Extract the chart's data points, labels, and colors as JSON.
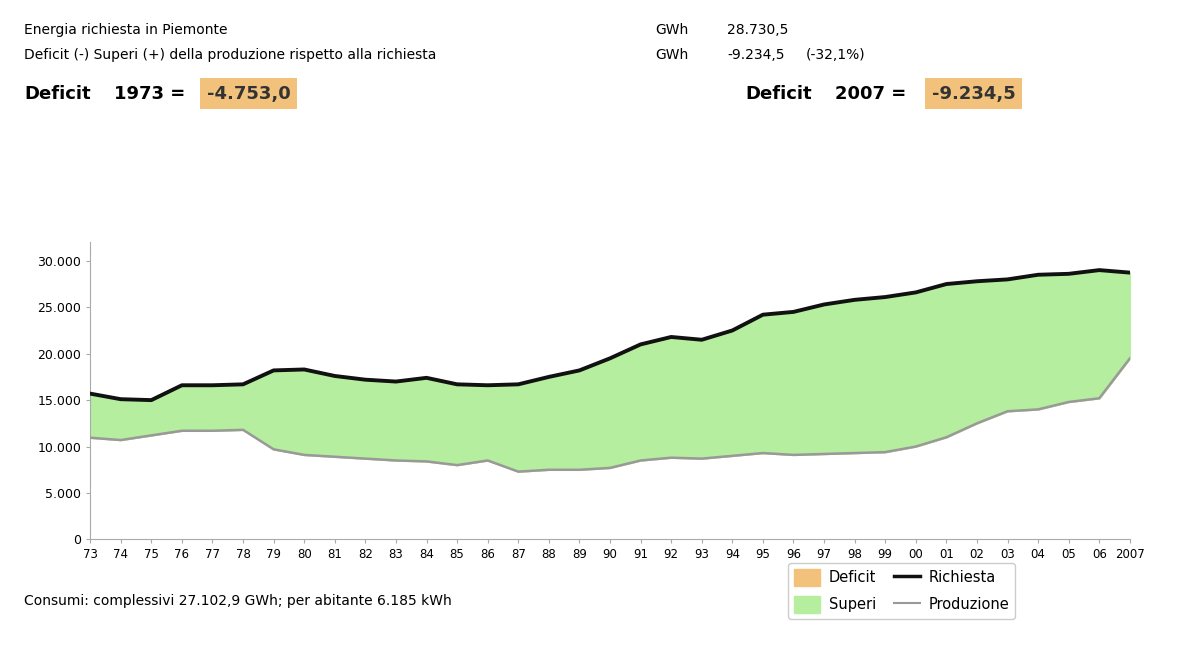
{
  "years": [
    1973,
    1974,
    1975,
    1976,
    1977,
    1978,
    1979,
    1980,
    1981,
    1982,
    1983,
    1984,
    1985,
    1986,
    1987,
    1988,
    1989,
    1990,
    1991,
    1992,
    1993,
    1994,
    1995,
    1996,
    1997,
    1998,
    1999,
    2000,
    2001,
    2002,
    2003,
    2004,
    2005,
    2006,
    2007
  ],
  "richiesta": [
    15700,
    15100,
    15000,
    16600,
    16600,
    16700,
    18200,
    18300,
    17600,
    17200,
    17000,
    17400,
    16700,
    16600,
    16700,
    17500,
    18200,
    19500,
    21000,
    21800,
    21500,
    22500,
    24200,
    24500,
    25300,
    25800,
    26100,
    26600,
    27500,
    27800,
    28000,
    28500,
    28600,
    29000,
    28730
  ],
  "produzione": [
    10950,
    10700,
    11200,
    11700,
    11700,
    11800,
    9700,
    9100,
    8900,
    8700,
    8500,
    8400,
    8000,
    8500,
    7300,
    7500,
    7500,
    7700,
    8500,
    8800,
    8700,
    9000,
    9300,
    9100,
    9200,
    9300,
    9400,
    10000,
    11000,
    12500,
    13800,
    14000,
    14800,
    15200,
    19496
  ],
  "title_line1": "Energia richiesta in Piemonte",
  "title_line2": "Deficit (-) Superi (+) della produzione rispetto alla richiesta",
  "gwh_label1": "GWh",
  "gwh_label2": "GWh",
  "value1": "28.730,5",
  "value2": "-9.234,5",
  "pct2": "(-32,1%)",
  "deficit_1973_value": "-4.753,0",
  "deficit_2007_value": "-9.234,5",
  "ylim": [
    0,
    32000
  ],
  "yticks": [
    0,
    5000,
    10000,
    15000,
    20000,
    25000,
    30000
  ],
  "ytick_labels": [
    "0",
    "5.000",
    "10.000",
    "15.000",
    "20.000",
    "25.000",
    "30.000"
  ],
  "deficit_fill_color": "#F2C27D",
  "superi_fill_color": "#B5EE9E",
  "richiesta_color": "#111111",
  "produzione_color": "#999999",
  "box_color": "#F2C27D",
  "bottom_text": "Consumi: complessivi 27.102,9 GWh; per abitante 6.185 kWh",
  "legend_deficit": "Deficit",
  "legend_superi": "Superi",
  "legend_richiesta": "Richiesta",
  "legend_produzione": "Produzione"
}
